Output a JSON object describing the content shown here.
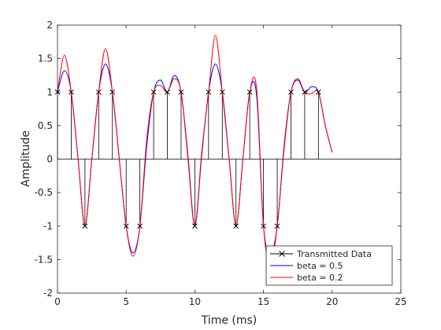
{
  "chart_data": {
    "type": "line",
    "title": "",
    "xlabel": "Time (ms)",
    "ylabel": "Amplitude",
    "xlim": [
      0,
      25
    ],
    "ylim": [
      -2,
      2
    ],
    "xticks": [
      0,
      5,
      10,
      15,
      20,
      25
    ],
    "yticks": [
      -2,
      -1.5,
      -1,
      -0.5,
      0,
      0.5,
      1,
      1.5,
      2
    ],
    "xtick_labels": [
      "0",
      "5",
      "10",
      "15",
      "20",
      "25"
    ],
    "ytick_labels": [
      "-2",
      "-1.5",
      "-1",
      "-0.5",
      "0",
      "0.5",
      "1",
      "1.5",
      "2"
    ],
    "grid": false,
    "legend_position": "bottom-right",
    "series": [
      {
        "name": "Transmitted Data",
        "style": "stem",
        "marker": "x",
        "color": "#000000",
        "x": [
          0,
          1,
          2,
          3,
          4,
          5,
          6,
          7,
          8,
          9,
          10,
          11,
          12,
          13,
          14,
          15,
          16,
          17,
          18,
          19
        ],
        "values": [
          1,
          1,
          -1,
          1,
          1,
          -1,
          -1,
          1,
          1,
          1,
          -1,
          1,
          1,
          -1,
          1,
          -1,
          -1,
          1,
          1,
          1
        ]
      },
      {
        "name": "beta = 0.5",
        "style": "line",
        "color": "#0000ff",
        "x": [
          0,
          0.5,
          1,
          1.5,
          2,
          2.5,
          3,
          3.5,
          4,
          4.5,
          5,
          5.5,
          6,
          6.5,
          7,
          7.5,
          8,
          8.5,
          9,
          9.5,
          10,
          10.5,
          11,
          11.5,
          12,
          12.5,
          13,
          13.5,
          14,
          14.5,
          15,
          15.5,
          16,
          16.5,
          17,
          17.5,
          18,
          18.5,
          19,
          19.5,
          20
        ],
        "values": [
          1,
          1.32,
          1,
          0,
          -1,
          0,
          1,
          1.42,
          1,
          0,
          -1,
          -1.4,
          -1,
          0.2,
          1,
          1.18,
          1,
          1.25,
          1,
          0.05,
          -1,
          0.05,
          1,
          1.42,
          1,
          0,
          -1,
          0,
          1,
          0.95,
          -1,
          -1.4,
          -1,
          0.2,
          1,
          1.18,
          1,
          1.08,
          1,
          0.5,
          0.1
        ]
      },
      {
        "name": "beta = 0.2",
        "style": "line",
        "color": "#ff0000",
        "x": [
          0,
          0.5,
          1,
          1.5,
          2,
          2.5,
          3,
          3.5,
          4,
          4.5,
          5,
          5.5,
          6,
          6.5,
          7,
          7.5,
          8,
          8.5,
          9,
          9.5,
          10,
          10.5,
          11,
          11.5,
          12,
          12.5,
          13,
          13.5,
          14,
          14.5,
          15,
          15.5,
          16,
          16.5,
          17,
          17.5,
          18,
          18.5,
          19,
          19.5,
          20
        ],
        "values": [
          1,
          1.55,
          1,
          0,
          -1,
          0,
          1,
          1.65,
          1,
          0,
          -1,
          -1.45,
          -1,
          0.3,
          1,
          1.1,
          1,
          1.2,
          1,
          0,
          -1,
          0.1,
          1,
          1.85,
          1,
          0,
          -1,
          0,
          1,
          1.05,
          -1,
          -1.6,
          -1,
          0.15,
          1,
          1.2,
          1,
          0.98,
          1,
          0.5,
          0.1
        ]
      }
    ]
  }
}
